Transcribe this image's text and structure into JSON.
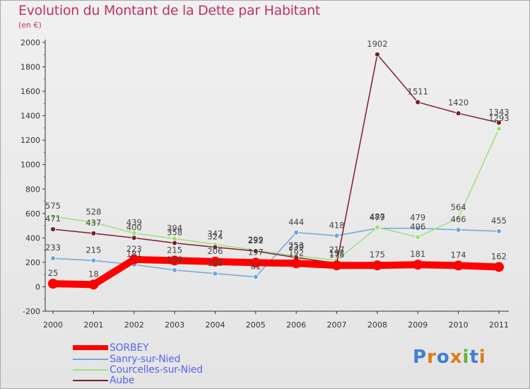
{
  "title": "Evolution du Montant de la Dette par Habitant",
  "unit_label": "(en €)",
  "brand": "Proxiti",
  "chart_data": {
    "type": "line",
    "x": [
      "2000",
      "2001",
      "2002",
      "2003",
      "2004",
      "2005",
      "2006",
      "2007",
      "2008",
      "2009",
      "2010",
      "2011"
    ],
    "ylim": [
      -200,
      2000
    ],
    "yticks": [
      "-200",
      "0",
      "200",
      "400",
      "600",
      "800",
      "1000",
      "1200",
      "1400",
      "1600",
      "1800",
      "2000"
    ],
    "grid": false,
    "legend_position": "bottom-left",
    "series": [
      {
        "name": "SORBEY",
        "color": "#ff0000",
        "values": [
          25,
          18,
          223,
          215,
          206,
          197,
          192,
          175,
          175,
          181,
          174,
          162
        ]
      },
      {
        "name": "Sanry-sur-Nied",
        "color": "#6fa8dc",
        "values": [
          233,
          215,
          181,
          136,
          108,
          81,
          444,
          418,
          479,
          479,
          466,
          455
        ]
      },
      {
        "name": "Courcelles-sur-Nied",
        "color": "#9fe07a",
        "values": [
          575,
          528,
          439,
          394,
          347,
          299,
          253,
          217,
          487,
          406,
          564,
          1293
        ]
      },
      {
        "name": "Aube",
        "color": "#7a1f2b",
        "values": [
          471,
          437,
          400,
          358,
          324,
          292,
          239,
          192,
          1902,
          1511,
          1420,
          1343
        ]
      }
    ]
  }
}
